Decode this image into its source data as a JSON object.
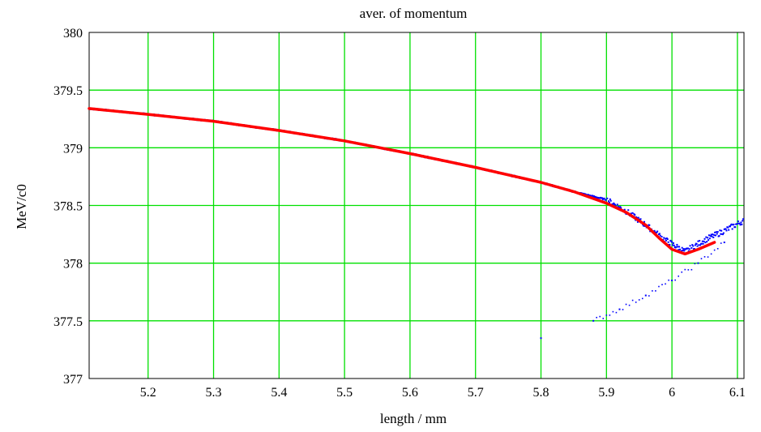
{
  "chart_data": {
    "type": "scatter",
    "title": "aver. of momentum",
    "xlabel": "length / mm",
    "ylabel": "MeV/c0",
    "xlim": [
      5.11,
      6.11
    ],
    "ylim": [
      377,
      380
    ],
    "x_ticks": [
      5.2,
      5.3,
      5.4,
      5.5,
      5.6,
      5.7,
      5.8,
      5.9,
      6,
      6.1
    ],
    "x_tick_labels": [
      "5.2",
      "5.3",
      "5.4",
      "5.5",
      "5.6",
      "5.7",
      "5.8",
      "5.9",
      "6",
      "6.1"
    ],
    "y_ticks": [
      377,
      377.5,
      378,
      378.5,
      379,
      379.5,
      380
    ],
    "y_tick_labels": [
      "377",
      "377.5",
      "378",
      "378.5",
      "379",
      "379.5",
      "380"
    ],
    "grid": true,
    "grid_color": "#00e000",
    "series": [
      {
        "kind": "scatter",
        "color": "#0000ff",
        "points": [
          [
            5.11,
            379.34
          ],
          [
            5.2,
            379.29
          ],
          [
            5.3,
            379.23
          ],
          [
            5.4,
            379.15
          ],
          [
            5.5,
            379.06
          ],
          [
            5.6,
            378.95
          ],
          [
            5.7,
            378.83
          ],
          [
            5.8,
            378.7
          ],
          [
            5.85,
            378.62
          ],
          [
            5.9,
            378.55
          ],
          [
            5.93,
            378.45
          ],
          [
            5.96,
            378.33
          ],
          [
            5.99,
            378.2
          ],
          [
            6.02,
            378.1
          ],
          [
            6.05,
            378.2
          ],
          [
            6.08,
            378.28
          ],
          [
            6.11,
            378.37
          ],
          [
            5.88,
            377.5
          ],
          [
            5.92,
            377.6
          ],
          [
            5.96,
            377.72
          ],
          [
            6.0,
            377.85
          ],
          [
            6.04,
            378.0
          ],
          [
            6.08,
            378.18
          ],
          [
            5.8,
            377.35
          ]
        ]
      },
      {
        "kind": "line",
        "color": "#ff0000",
        "points": [
          [
            5.11,
            379.34
          ],
          [
            5.2,
            379.29
          ],
          [
            5.3,
            379.23
          ],
          [
            5.4,
            379.15
          ],
          [
            5.5,
            379.06
          ],
          [
            5.6,
            378.95
          ],
          [
            5.7,
            378.83
          ],
          [
            5.8,
            378.7
          ],
          [
            5.85,
            378.62
          ],
          [
            5.9,
            378.52
          ],
          [
            5.93,
            378.44
          ],
          [
            5.96,
            378.33
          ],
          [
            5.98,
            378.22
          ],
          [
            6.0,
            378.12
          ],
          [
            6.02,
            378.08
          ],
          [
            6.04,
            378.12
          ],
          [
            6.065,
            378.18
          ]
        ]
      }
    ]
  }
}
